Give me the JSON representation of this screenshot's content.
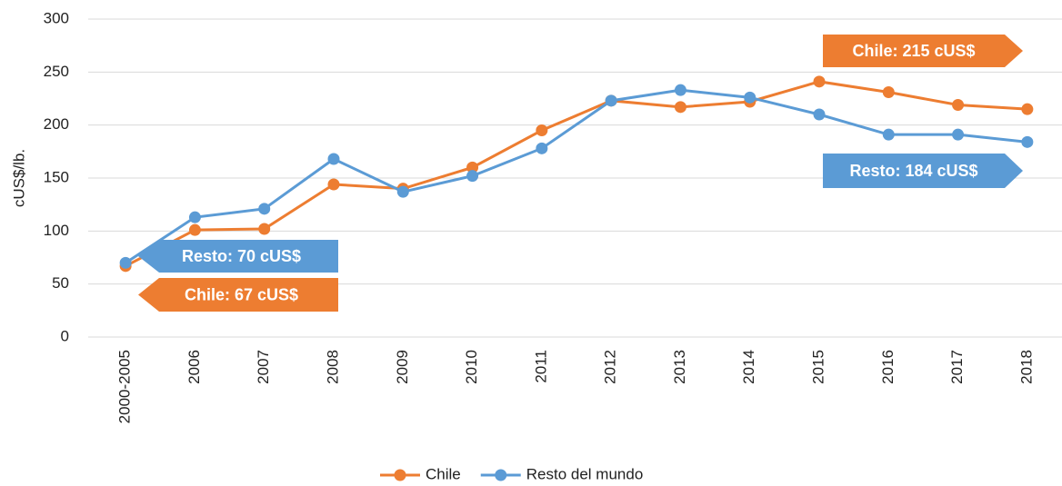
{
  "chart_data": {
    "type": "line",
    "y_label": "cUS$/lb.",
    "categories": [
      "2000-2005",
      "2006",
      "2007",
      "2008",
      "2009",
      "2010",
      "2011",
      "2012",
      "2013",
      "2014",
      "2015",
      "2016",
      "2017",
      "2018"
    ],
    "series": [
      {
        "name": "Chile",
        "color": "#ed7d31",
        "values": [
          67,
          101,
          102,
          144,
          140,
          160,
          195,
          223,
          217,
          222,
          241,
          231,
          219,
          215
        ]
      },
      {
        "name": "Resto del mundo",
        "color": "#5b9bd5",
        "values": [
          70,
          113,
          121,
          168,
          137,
          152,
          178,
          223,
          233,
          226,
          210,
          191,
          191,
          184
        ]
      }
    ],
    "ylim": [
      0,
      300
    ],
    "yticks": [
      0,
      50,
      100,
      150,
      200,
      250,
      300
    ],
    "grid": true,
    "legend": "bottom",
    "annotations": [
      {
        "text": "Chile: 215 cUS$",
        "color": "#ed7d31"
      },
      {
        "text": "Resto: 184 cUS$",
        "color": "#5b9bd5"
      },
      {
        "text": "Resto: 70 cUS$",
        "color": "#5b9bd5"
      },
      {
        "text": "Chile: 67 cUS$",
        "color": "#ed7d31"
      }
    ]
  }
}
